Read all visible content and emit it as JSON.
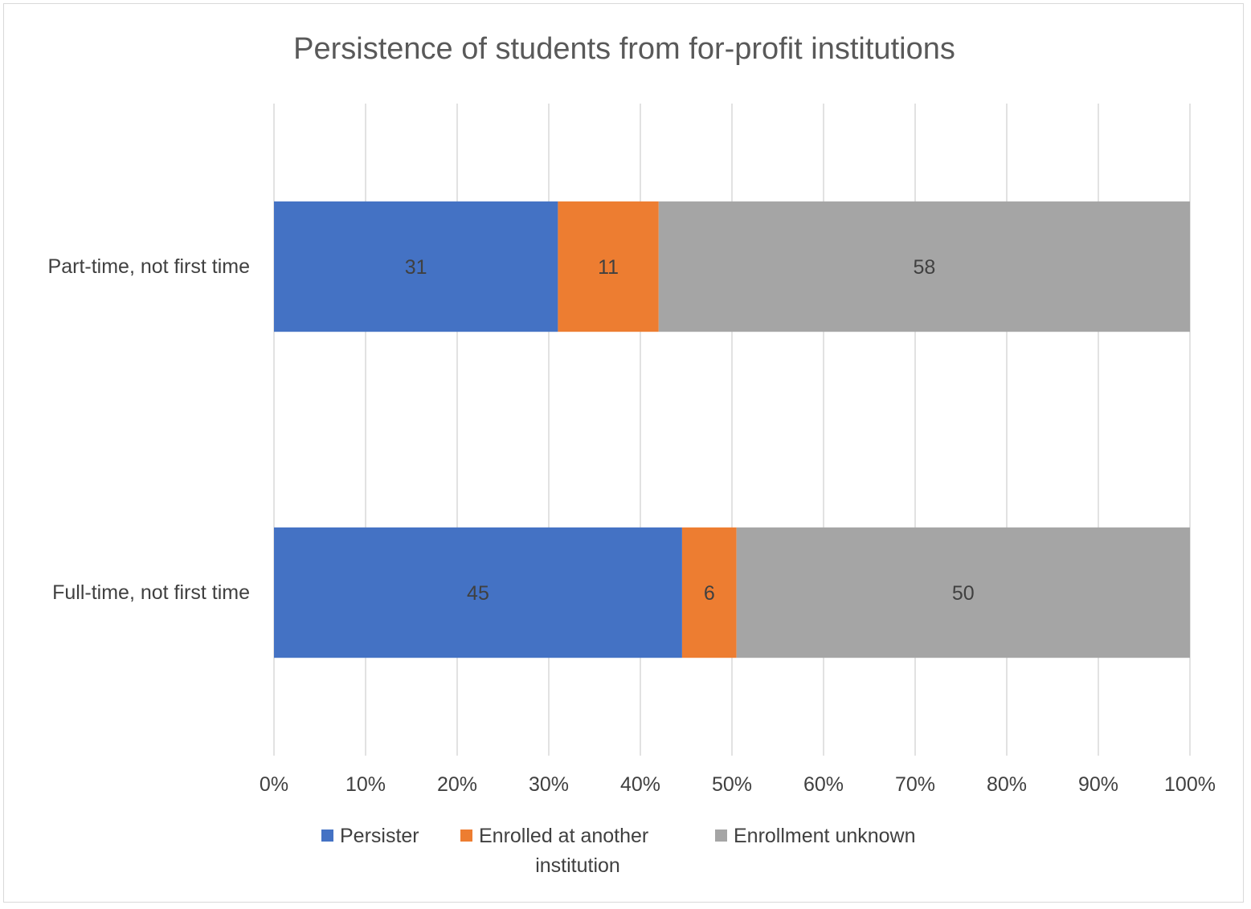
{
  "chart_data": {
    "type": "bar",
    "orientation": "horizontal",
    "stacked": "percent",
    "title": "Persistence of students from for-profit institutions",
    "categories": [
      "Part-time, not first time",
      "Full-time, not first time"
    ],
    "series": [
      {
        "name": "Persister",
        "values": [
          31,
          45
        ],
        "color": "#4472c4"
      },
      {
        "name": "Enrolled at another institution",
        "legend_lines": [
          "Enrolled at another",
          "institution"
        ],
        "values": [
          11,
          6
        ],
        "color": "#ed7d31"
      },
      {
        "name": "Enrollment unknown",
        "values": [
          58,
          50
        ],
        "color": "#a5a5a5"
      }
    ],
    "xlim": [
      0,
      100
    ],
    "x_ticks": [
      "0%",
      "10%",
      "20%",
      "30%",
      "40%",
      "50%",
      "60%",
      "70%",
      "80%",
      "90%",
      "100%"
    ],
    "grid": "vertical",
    "legend": "bottom"
  }
}
